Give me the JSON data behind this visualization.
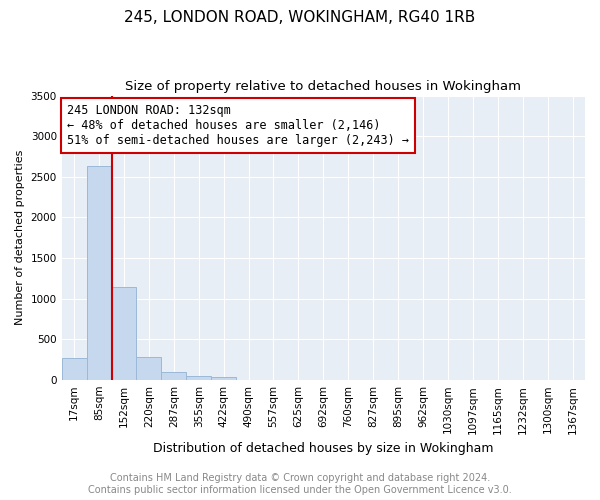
{
  "title": "245, LONDON ROAD, WOKINGHAM, RG40 1RB",
  "subtitle": "Size of property relative to detached houses in Wokingham",
  "xlabel": "Distribution of detached houses by size in Wokingham",
  "ylabel": "Number of detached properties",
  "categories": [
    "17sqm",
    "85sqm",
    "152sqm",
    "220sqm",
    "287sqm",
    "355sqm",
    "422sqm",
    "490sqm",
    "557sqm",
    "625sqm",
    "692sqm",
    "760sqm",
    "827sqm",
    "895sqm",
    "962sqm",
    "1030sqm",
    "1097sqm",
    "1165sqm",
    "1232sqm",
    "1300sqm",
    "1367sqm"
  ],
  "values": [
    270,
    2630,
    1150,
    280,
    100,
    55,
    40,
    0,
    0,
    0,
    0,
    0,
    0,
    0,
    0,
    0,
    0,
    0,
    0,
    0,
    0
  ],
  "bar_color": "#c5d8ed",
  "bar_edge_color": "#9bb8d8",
  "property_line_color": "#cc0000",
  "property_line_x": 1.5,
  "annotation_text": "245 LONDON ROAD: 132sqm\n← 48% of detached houses are smaller (2,146)\n51% of semi-detached houses are larger (2,243) →",
  "annotation_box_color": "#ffffff",
  "annotation_box_edge_color": "#cc0000",
  "footer_line1": "Contains HM Land Registry data © Crown copyright and database right 2024.",
  "footer_line2": "Contains public sector information licensed under the Open Government Licence v3.0.",
  "ylim": [
    0,
    3500
  ],
  "yticks": [
    0,
    500,
    1000,
    1500,
    2000,
    2500,
    3000,
    3500
  ],
  "background_color": "#ffffff",
  "plot_bg_color": "#e8eef5",
  "grid_color": "#ffffff",
  "title_fontsize": 11,
  "subtitle_fontsize": 9.5,
  "annotation_fontsize": 8.5,
  "footer_fontsize": 7,
  "ylabel_fontsize": 8,
  "xlabel_fontsize": 9,
  "tick_fontsize": 7.5
}
